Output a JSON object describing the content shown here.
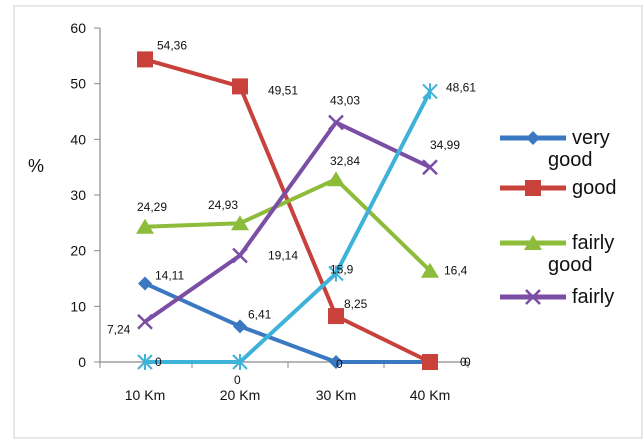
{
  "chart_data": {
    "type": "line",
    "title": "",
    "xlabel": "",
    "ylabel": "%",
    "ylim": [
      0,
      60
    ],
    "yticks": [
      0,
      10,
      20,
      30,
      40,
      50,
      60
    ],
    "categories": [
      "10 Km",
      "20 Km",
      "30 Km",
      "40 Km"
    ],
    "grid": false,
    "legend_position": "right",
    "series": [
      {
        "name": "very good",
        "color": "#3a78c2",
        "marker": "diamond",
        "values": [
          14.11,
          6.41,
          0,
          0
        ],
        "labels": [
          "14,11",
          "6,41",
          "0",
          "0"
        ]
      },
      {
        "name": "good",
        "color": "#c8413b",
        "marker": "square",
        "values": [
          54.36,
          49.51,
          8.25,
          0
        ],
        "labels": [
          "54,36",
          "49,51",
          "8,25",
          "0"
        ]
      },
      {
        "name": "fairly good",
        "color": "#8dbb3a",
        "marker": "triangle",
        "values": [
          24.29,
          24.93,
          32.84,
          16.4
        ],
        "labels": [
          "24,29",
          "24,93",
          "32,84",
          "16,4"
        ]
      },
      {
        "name": "fairly",
        "color": "#7b4ea6",
        "marker": "cross",
        "values": [
          7.24,
          19.14,
          43.03,
          34.99
        ],
        "labels": [
          "7,24",
          "19,14",
          "43,03",
          "34,99"
        ]
      },
      {
        "name": "",
        "color": "#3fb2d9",
        "marker": "star",
        "values": [
          0,
          0,
          15.9,
          48.61
        ],
        "labels": [
          "0",
          "0",
          "15,9",
          "48,61"
        ]
      }
    ],
    "legend": [
      {
        "lines": [
          "very",
          "good"
        ],
        "series": 0
      },
      {
        "lines": [
          "good"
        ],
        "series": 1
      },
      {
        "lines": [
          "fairly",
          "good"
        ],
        "series": 2
      },
      {
        "lines": [
          "fairly"
        ],
        "series": 3
      }
    ]
  }
}
